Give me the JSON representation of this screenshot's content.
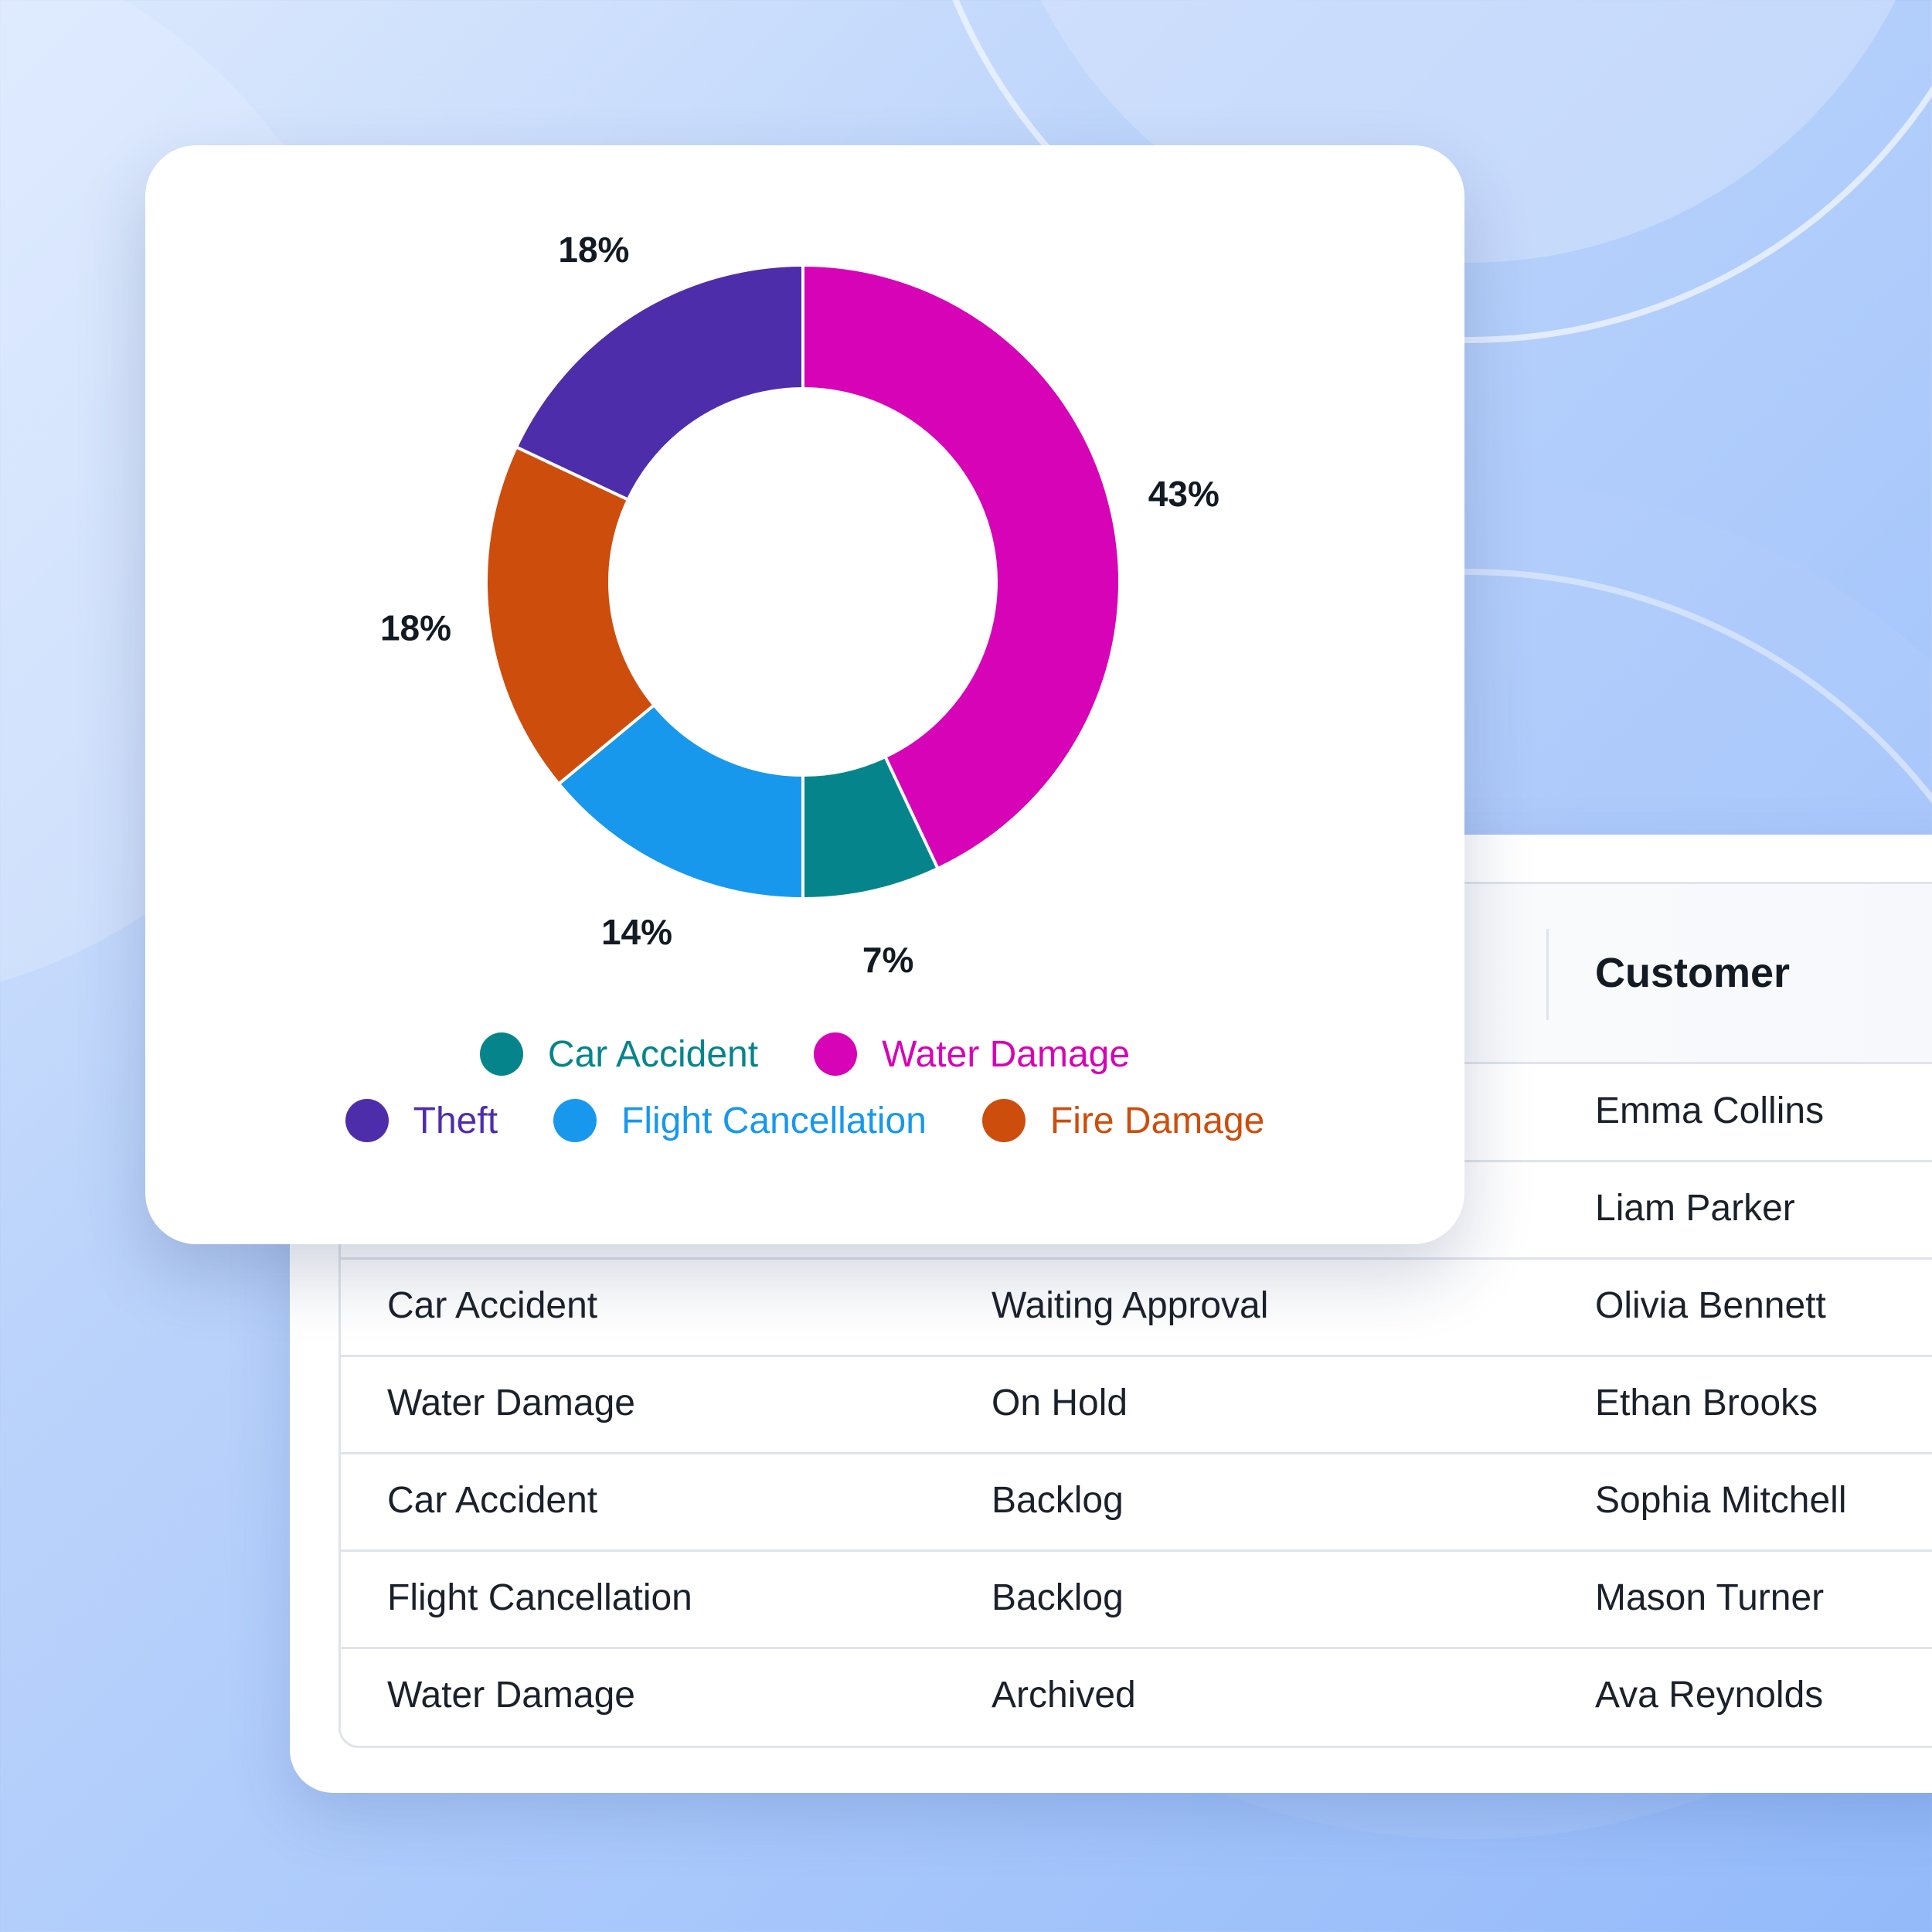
{
  "chart_data": {
    "type": "pie",
    "title": "",
    "categories": [
      "Water Damage",
      "Car Accident",
      "Flight Cancellation",
      "Fire Damage",
      "Theft"
    ],
    "values": [
      43,
      7,
      14,
      18,
      18
    ],
    "labels": [
      "43%",
      "7%",
      "14%",
      "18%",
      "18%"
    ],
    "colors": [
      "#d604b6",
      "#05858b",
      "#1898ec",
      "#cd4d0d",
      "#4e2dab"
    ],
    "legend": [
      {
        "label": "Car Accident",
        "color": "#05858b"
      },
      {
        "label": "Water Damage",
        "color": "#d604b6"
      },
      {
        "label": "Theft",
        "color": "#4e2dab"
      },
      {
        "label": "Flight Cancellation",
        "color": "#1898ec"
      },
      {
        "label": "Fire Damage",
        "color": "#cd4d0d"
      }
    ],
    "legend_placement": "bottom",
    "donut": true
  },
  "table": {
    "visible_header": "Customer",
    "rows": [
      {
        "type": "",
        "status": "",
        "customer": "Emma Collins"
      },
      {
        "type": "",
        "status": "",
        "customer": "Liam Parker"
      },
      {
        "type": "Car Accident",
        "status": "Waiting Approval",
        "customer": "Olivia Bennett"
      },
      {
        "type": "Water Damage",
        "status": "On Hold",
        "customer": "Ethan Brooks"
      },
      {
        "type": "Car Accident",
        "status": "Backlog",
        "customer": "Sophia Mitchell"
      },
      {
        "type": "Flight Cancellation",
        "status": "Backlog",
        "customer": "Mason Turner"
      },
      {
        "type": "Water Damage",
        "status": "Archived",
        "customer": "Ava Reynolds"
      }
    ]
  }
}
